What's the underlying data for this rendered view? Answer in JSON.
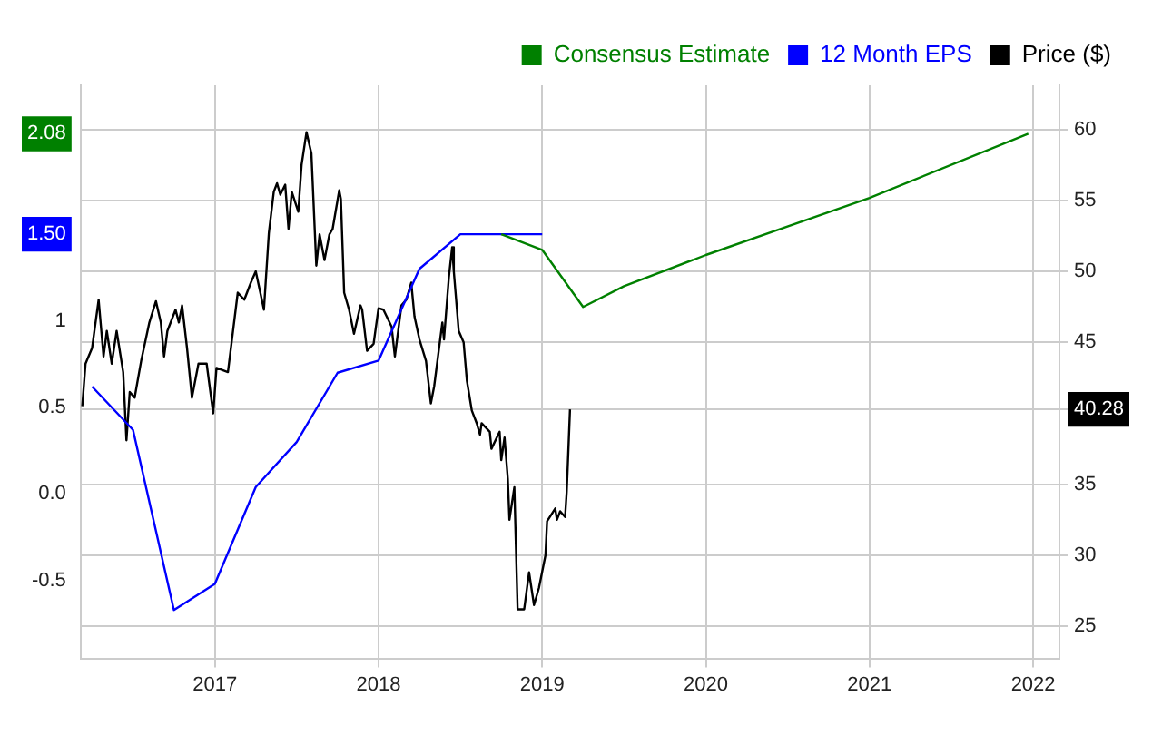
{
  "chart_data": {
    "type": "line",
    "xlim": [
      2016.18,
      2022.16
    ],
    "xticks": [
      2017,
      2018,
      2019,
      2020,
      2021,
      2022
    ],
    "ylim": [
      -0.95,
      2.36
    ],
    "yticks": [
      -0.5,
      {
        "value": 0,
        "label": "0.0"
      },
      0.5,
      1,
      {
        "value": 1.5,
        "label": "1.50"
      },
      {
        "value": 2.08,
        "label": "2.08"
      }
    ],
    "y2lim": [
      22.74,
      63.1
    ],
    "y2ticks": [
      25,
      30,
      35,
      {
        "value": 40.28,
        "label": "40.28"
      },
      45,
      50,
      55,
      60
    ],
    "grid": true,
    "legend": "top right",
    "marker": "none",
    "series": [
      {
        "name": "Consensus Estimate",
        "color": "#008000",
        "x": [
          2018.75,
          2019.0,
          2019.25,
          2019.5,
          2020.0,
          2021.0,
          2021.97
        ],
        "values": [
          1.5,
          1.41,
          1.08,
          1.2,
          1.38,
          1.71,
          2.08
        ]
      },
      {
        "name": "12 Month EPS",
        "color": "#0000ff",
        "x": [
          2016.25,
          2016.5,
          2016.75,
          2017.0,
          2017.25,
          2017.5,
          2017.75,
          2018.0,
          2018.25,
          2018.5,
          2018.75,
          2019.0
        ],
        "values": [
          0.62,
          0.37,
          -0.67,
          -0.52,
          0.04,
          0.3,
          0.7,
          0.77,
          1.3,
          1.5,
          1.5,
          1.5
        ]
      },
      {
        "name": "Price ($)",
        "color": "#000000",
        "axis": "y2",
        "x": [
          2016.19,
          2016.21,
          2016.25,
          2016.29,
          2016.32,
          2016.34,
          2016.37,
          2016.4,
          2016.44,
          2016.46,
          2016.48,
          2016.51,
          2016.55,
          2016.6,
          2016.64,
          2016.67,
          2016.69,
          2016.71,
          2016.76,
          2016.78,
          2016.8,
          2016.83,
          2016.86,
          2016.9,
          2016.95,
          2016.99,
          2017.01,
          2017.08,
          2017.14,
          2017.18,
          2017.22,
          2017.25,
          2017.3,
          2017.33,
          2017.36,
          2017.38,
          2017.4,
          2017.43,
          2017.45,
          2017.47,
          2017.51,
          2017.53,
          2017.56,
          2017.59,
          2017.62,
          2017.64,
          2017.67,
          2017.7,
          2017.72,
          2017.76,
          2017.77,
          2017.79,
          2017.82,
          2017.85,
          2017.89,
          2017.9,
          2017.93,
          2017.97,
          2018.0,
          2018.03,
          2018.08,
          2018.1,
          2018.14,
          2018.17,
          2018.2,
          2018.22,
          2018.25,
          2018.29,
          2018.32,
          2018.34,
          2018.39,
          2018.4,
          2018.43,
          2018.45,
          2018.46,
          2018.49,
          2018.52,
          2018.54,
          2018.57,
          2018.6,
          2018.62,
          2018.63,
          2018.68,
          2018.69,
          2018.74,
          2018.75,
          2018.77,
          2018.79,
          2018.8,
          2018.83,
          2018.85,
          2018.89,
          2018.92,
          2018.95,
          2018.98,
          2019.02,
          2019.03,
          2019.08,
          2019.09,
          2019.11,
          2019.14,
          2019.15,
          2019.17
        ],
        "values": [
          40.5,
          43.5,
          44.6,
          48.0,
          44.0,
          45.8,
          43.5,
          45.8,
          42.9,
          38.1,
          41.5,
          41.1,
          43.7,
          46.4,
          47.9,
          46.4,
          44.0,
          45.8,
          47.3,
          46.4,
          47.6,
          44.6,
          41.1,
          43.5,
          43.5,
          40.0,
          43.2,
          42.9,
          48.5,
          48.0,
          49.2,
          50.0,
          47.3,
          52.7,
          55.6,
          56.2,
          55.4,
          56.1,
          53.0,
          55.6,
          54.2,
          57.5,
          59.8,
          58.3,
          50.4,
          52.6,
          50.8,
          52.6,
          53.0,
          55.7,
          55.1,
          48.5,
          47.3,
          45.6,
          47.6,
          47.3,
          44.4,
          44.9,
          47.4,
          47.3,
          46.1,
          44.0,
          47.6,
          48.0,
          49.2,
          46.8,
          45.2,
          43.7,
          40.7,
          41.9,
          46.4,
          45.2,
          49.6,
          51.7,
          50.0,
          45.8,
          45.0,
          42.3,
          40.2,
          39.3,
          38.5,
          39.3,
          38.7,
          37.5,
          38.7,
          36.7,
          38.3,
          35.4,
          32.5,
          34.8,
          26.2,
          26.2,
          28.8,
          26.5,
          27.7,
          30.0,
          32.4,
          33.3,
          32.5,
          33.1,
          32.7,
          34.5,
          40.28
        ]
      }
    ]
  }
}
